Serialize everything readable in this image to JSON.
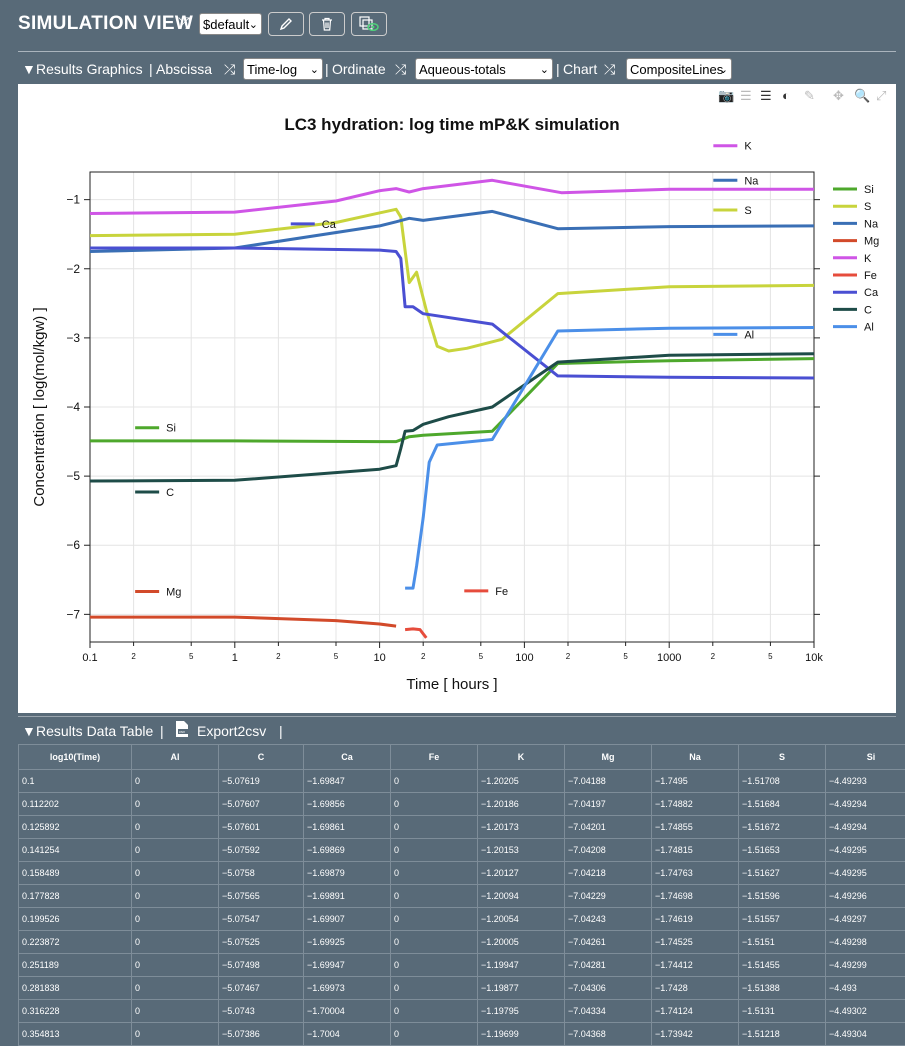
{
  "header": {
    "title": "SIMULATION VIEW",
    "preset_value": "$default"
  },
  "results_graphics": {
    "section_label": "Results Graphics",
    "abscissa_label": "Abscissa",
    "abscissa_value": "Time-log",
    "ordinate_label": "Ordinate",
    "ordinate_value": "Aqueous-totals",
    "chart_label": "Chart",
    "chart_value": "CompositeLines"
  },
  "colors": {
    "Si": "#4ea82c",
    "S": "#c8d43c",
    "Na": "#3a6fb5",
    "Mg": "#d24a2a",
    "K": "#cf55e6",
    "Fe": "#e64c3c",
    "Ca": "#4a4fd2",
    "C": "#1e4c48",
    "Al": "#4b8fe8"
  },
  "chart_data": {
    "type": "line",
    "title": "LC3 hydration: log time mP&K simulation",
    "xlabel": "Time [ hours ]",
    "ylabel": "Concentration [ log(mol/kgw) ]",
    "xscale": "log",
    "xlim": [
      0.1,
      10000
    ],
    "ylim": [
      -7.4,
      -0.6
    ],
    "x_major_ticks": [
      {
        "v": 0.1,
        "l": "0.1"
      },
      {
        "v": 1,
        "l": "1"
      },
      {
        "v": 10,
        "l": "10"
      },
      {
        "v": 100,
        "l": "100"
      },
      {
        "v": 1000,
        "l": "1000"
      },
      {
        "v": 10000,
        "l": "10k"
      }
    ],
    "x_minor_ticks": [
      {
        "v": 0.2,
        "l": "2"
      },
      {
        "v": 0.5,
        "l": "5"
      },
      {
        "v": 2,
        "l": "2"
      },
      {
        "v": 5,
        "l": "5"
      },
      {
        "v": 20,
        "l": "2"
      },
      {
        "v": 50,
        "l": "5"
      },
      {
        "v": 200,
        "l": "2"
      },
      {
        "v": 500,
        "l": "5"
      },
      {
        "v": 2000,
        "l": "2"
      },
      {
        "v": 5000,
        "l": "5"
      }
    ],
    "y_ticks": [
      {
        "v": -1,
        "l": "−1"
      },
      {
        "v": -2,
        "l": "−2"
      },
      {
        "v": -3,
        "l": "−3"
      },
      {
        "v": -4,
        "l": "−4"
      },
      {
        "v": -5,
        "l": "−5"
      },
      {
        "v": -6,
        "l": "−6"
      },
      {
        "v": -7,
        "l": "−7"
      }
    ],
    "legend_position": "right",
    "series": [
      {
        "name": "Si",
        "color": "#4ea82c",
        "label_at": [
          0.32,
          -4.3
        ],
        "points": [
          [
            0.1,
            -4.49
          ],
          [
            1,
            -4.49
          ],
          [
            10,
            -4.5
          ],
          [
            13,
            -4.5
          ],
          [
            16,
            -4.43
          ],
          [
            20,
            -4.41
          ],
          [
            60,
            -4.35
          ],
          [
            170,
            -3.37
          ],
          [
            1000,
            -3.33
          ],
          [
            10000,
            -3.3
          ]
        ]
      },
      {
        "name": "S",
        "color": "#c8d43c",
        "label_at": [
          3150,
          -1.15
        ],
        "points": [
          [
            0.1,
            -1.52
          ],
          [
            1,
            -1.5
          ],
          [
            5,
            -1.33
          ],
          [
            13,
            -1.14
          ],
          [
            14,
            -1.25
          ],
          [
            16,
            -2.2
          ],
          [
            18,
            -2.05
          ],
          [
            21,
            -2.6
          ],
          [
            25,
            -3.12
          ],
          [
            30,
            -3.19
          ],
          [
            40,
            -3.15
          ],
          [
            70,
            -3.02
          ],
          [
            170,
            -2.36
          ],
          [
            1000,
            -2.26
          ],
          [
            10000,
            -2.24
          ]
        ]
      },
      {
        "name": "Na",
        "color": "#3a6fb5",
        "label_at": [
          3150,
          -0.72
        ],
        "points": [
          [
            0.1,
            -1.75
          ],
          [
            1,
            -1.7
          ],
          [
            10,
            -1.38
          ],
          [
            13,
            -1.32
          ],
          [
            16,
            -1.27
          ],
          [
            20,
            -1.3
          ],
          [
            60,
            -1.17
          ],
          [
            170,
            -1.42
          ],
          [
            1000,
            -1.39
          ],
          [
            10000,
            -1.38
          ]
        ]
      },
      {
        "name": "Mg",
        "color": "#d24a2a",
        "label_at": [
          0.32,
          -6.67
        ],
        "points": [
          [
            0.1,
            -7.04
          ],
          [
            1,
            -7.04
          ],
          [
            5,
            -7.09
          ],
          [
            10,
            -7.14
          ],
          [
            13,
            -7.17
          ]
        ]
      },
      {
        "name": "K",
        "color": "#cf55e6",
        "label_at": [
          3150,
          -0.22
        ],
        "points": [
          [
            0.1,
            -1.2
          ],
          [
            1,
            -1.18
          ],
          [
            5,
            -1.02
          ],
          [
            10,
            -0.87
          ],
          [
            13,
            -0.84
          ],
          [
            16,
            -0.89
          ],
          [
            20,
            -0.84
          ],
          [
            60,
            -0.72
          ],
          [
            180,
            -0.9
          ],
          [
            1000,
            -0.85
          ],
          [
            10000,
            -0.85
          ]
        ]
      },
      {
        "name": "Fe",
        "color": "#e64c3c",
        "label_at": [
          60,
          -6.66
        ],
        "points": [
          [
            15,
            -7.22
          ],
          [
            17,
            -7.21
          ],
          [
            19,
            -7.22
          ],
          [
            21,
            -7.34
          ]
        ]
      },
      {
        "name": "Ca",
        "color": "#4a4fd2",
        "label_at": [
          3.8,
          -1.35
        ],
        "points": [
          [
            0.1,
            -1.7
          ],
          [
            1,
            -1.7
          ],
          [
            10,
            -1.73
          ],
          [
            13,
            -1.75
          ],
          [
            14,
            -1.85
          ],
          [
            15,
            -2.55
          ],
          [
            17,
            -2.55
          ],
          [
            20,
            -2.65
          ],
          [
            60,
            -2.8
          ],
          [
            170,
            -3.55
          ],
          [
            1000,
            -3.57
          ],
          [
            10000,
            -3.58
          ]
        ]
      },
      {
        "name": "C",
        "color": "#1e4c48",
        "label_at": [
          0.32,
          -5.23
        ],
        "points": [
          [
            0.1,
            -5.07
          ],
          [
            1,
            -5.06
          ],
          [
            10,
            -4.9
          ],
          [
            13,
            -4.85
          ],
          [
            14,
            -4.6
          ],
          [
            15,
            -4.35
          ],
          [
            17,
            -4.34
          ],
          [
            20,
            -4.25
          ],
          [
            30,
            -4.14
          ],
          [
            60,
            -4.0
          ],
          [
            170,
            -3.35
          ],
          [
            1000,
            -3.25
          ],
          [
            10000,
            -3.23
          ]
        ]
      },
      {
        "name": "Al",
        "color": "#4b8fe8",
        "label_at": [
          3150,
          -2.95
        ],
        "points": [
          [
            15,
            -6.62
          ],
          [
            17,
            -6.62
          ],
          [
            18,
            -6.3
          ],
          [
            20,
            -5.6
          ],
          [
            22,
            -4.8
          ],
          [
            25,
            -4.55
          ],
          [
            60,
            -4.47
          ],
          [
            170,
            -2.9
          ],
          [
            1000,
            -2.86
          ],
          [
            10000,
            -2.85
          ]
        ]
      }
    ],
    "legend_order": [
      "Si",
      "S",
      "Na",
      "Mg",
      "K",
      "Fe",
      "Ca",
      "C",
      "Al"
    ]
  },
  "table_section": {
    "label": "Results Data Table",
    "export_label": "Export2csv"
  },
  "table": {
    "columns": [
      "log10(Time)",
      "Al",
      "C",
      "Ca",
      "Fe",
      "K",
      "Mg",
      "Na",
      "S",
      "Si"
    ],
    "rows": [
      [
        "0.1",
        "0",
        "−5.07619",
        "−1.69847",
        "0",
        "−1.20205",
        "−7.04188",
        "−1.7495",
        "−1.51708",
        "−4.49293"
      ],
      [
        "0.112202",
        "0",
        "−5.07607",
        "−1.69856",
        "0",
        "−1.20186",
        "−7.04197",
        "−1.74882",
        "−1.51684",
        "−4.49294"
      ],
      [
        "0.125892",
        "0",
        "−5.07601",
        "−1.69861",
        "0",
        "−1.20173",
        "−7.04201",
        "−1.74855",
        "−1.51672",
        "−4.49294"
      ],
      [
        "0.141254",
        "0",
        "−5.07592",
        "−1.69869",
        "0",
        "−1.20153",
        "−7.04208",
        "−1.74815",
        "−1.51653",
        "−4.49295"
      ],
      [
        "0.158489",
        "0",
        "−5.0758",
        "−1.69879",
        "0",
        "−1.20127",
        "−7.04218",
        "−1.74763",
        "−1.51627",
        "−4.49295"
      ],
      [
        "0.177828",
        "0",
        "−5.07565",
        "−1.69891",
        "0",
        "−1.20094",
        "−7.04229",
        "−1.74698",
        "−1.51596",
        "−4.49296"
      ],
      [
        "0.199526",
        "0",
        "−5.07547",
        "−1.69907",
        "0",
        "−1.20054",
        "−7.04243",
        "−1.74619",
        "−1.51557",
        "−4.49297"
      ],
      [
        "0.223872",
        "0",
        "−5.07525",
        "−1.69925",
        "0",
        "−1.20005",
        "−7.04261",
        "−1.74525",
        "−1.5151",
        "−4.49298"
      ],
      [
        "0.251189",
        "0",
        "−5.07498",
        "−1.69947",
        "0",
        "−1.19947",
        "−7.04281",
        "−1.74412",
        "−1.51455",
        "−4.49299"
      ],
      [
        "0.281838",
        "0",
        "−5.07467",
        "−1.69973",
        "0",
        "−1.19877",
        "−7.04306",
        "−1.7428",
        "−1.51388",
        "−4.493"
      ],
      [
        "0.316228",
        "0",
        "−5.0743",
        "−1.70004",
        "0",
        "−1.19795",
        "−7.04334",
        "−1.74124",
        "−1.5131",
        "−4.49302"
      ],
      [
        "0.354813",
        "0",
        "−5.07386",
        "−1.7004",
        "0",
        "−1.19699",
        "−7.04368",
        "−1.73942",
        "−1.51218",
        "−4.49304"
      ]
    ]
  }
}
